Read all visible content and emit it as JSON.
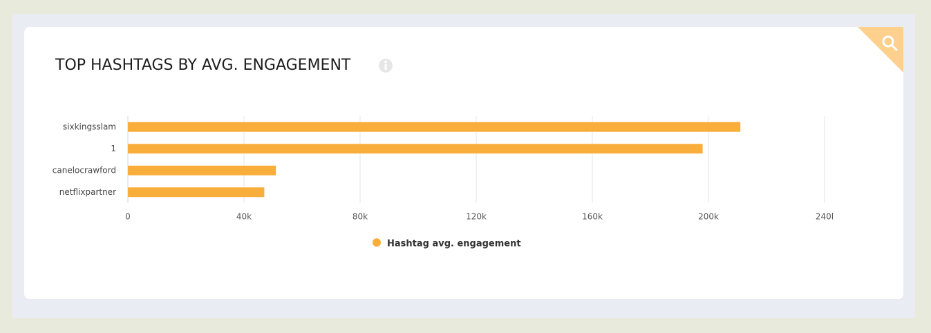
{
  "chart_data": {
    "type": "hbar",
    "title": "TOP HASHTAGS BY AVG. ENGAGEMENT",
    "categories": [
      "sixkingsslam",
      "1",
      "canelocrawford",
      "netflixpartner"
    ],
    "series": [
      {
        "name": "Hashtag avg. engagement",
        "color": "#f9ae3b",
        "values": [
          211000,
          198000,
          51000,
          47000
        ]
      }
    ],
    "xlim": [
      0,
      240000
    ],
    "xticks": [
      0,
      {
        "value": 40000,
        "label": "40k"
      },
      {
        "value": 80000,
        "label": "80k"
      },
      {
        "value": 120000,
        "label": "120k"
      },
      {
        "value": 160000,
        "label": "160k"
      },
      {
        "value": 200000,
        "label": "200k"
      },
      {
        "value": 240000,
        "label": "240l"
      }
    ],
    "grid": true
  }
}
